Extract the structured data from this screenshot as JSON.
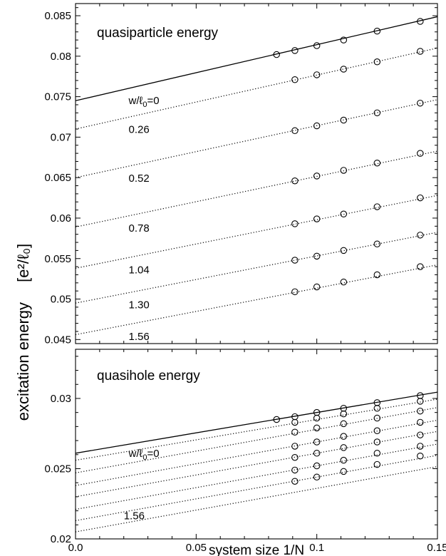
{
  "ylabel": "excitation energy",
  "ylabel_unit": "[e²/ℓ₀]",
  "chart_data": [
    {
      "type": "line",
      "title": "quasiparticle energy",
      "xlabel": "",
      "xlim": [
        0,
        0.15
      ],
      "ylim": [
        0.0445,
        0.0865
      ],
      "yticks": [
        0.045,
        0.05,
        0.055,
        0.06,
        0.065,
        0.07,
        0.075,
        0.08,
        0.085
      ],
      "ytick_labels": [
        "0.045",
        "0.05",
        "0.055",
        "0.06",
        "0.065",
        "0.07",
        "0.075",
        "0.08",
        "0.085"
      ],
      "x_points": [
        0.08333,
        0.09091,
        0.1,
        0.11111,
        0.125,
        0.14286
      ],
      "series": [
        {
          "name": "w/ℓ₀=0",
          "label_var": "w/ℓ",
          "label_sub": "0",
          "label_val": "=0",
          "style": "solid",
          "intercept": 0.0745,
          "slope": 0.0692,
          "points": [
            [
              0.08333,
              0.0802
            ],
            [
              0.09091,
              0.0807
            ],
            [
              0.1,
              0.0813
            ],
            [
              0.11111,
              0.082
            ],
            [
              0.125,
              0.0831
            ],
            [
              0.14286,
              0.0843
            ]
          ]
        },
        {
          "name": "0.26",
          "style": "dotted",
          "intercept": 0.071,
          "slope": 0.0667,
          "points": [
            [
              0.09091,
              0.0771
            ],
            [
              0.1,
              0.0777
            ],
            [
              0.11111,
              0.0784
            ],
            [
              0.125,
              0.0793
            ],
            [
              0.14286,
              0.0806
            ]
          ]
        },
        {
          "name": "0.52",
          "style": "dotted",
          "intercept": 0.065,
          "slope": 0.0642,
          "points": [
            [
              0.09091,
              0.0708
            ],
            [
              0.1,
              0.0714
            ],
            [
              0.11111,
              0.0721
            ],
            [
              0.125,
              0.073
            ],
            [
              0.14286,
              0.0742
            ]
          ]
        },
        {
          "name": "0.78",
          "style": "dotted",
          "intercept": 0.0589,
          "slope": 0.0625,
          "points": [
            [
              0.09091,
              0.0646
            ],
            [
              0.1,
              0.0652
            ],
            [
              0.11111,
              0.0659
            ],
            [
              0.125,
              0.0668
            ],
            [
              0.14286,
              0.068
            ]
          ]
        },
        {
          "name": "1.04",
          "style": "dotted",
          "intercept": 0.0538,
          "slope": 0.06,
          "points": [
            [
              0.09091,
              0.0593
            ],
            [
              0.1,
              0.0599
            ],
            [
              0.11111,
              0.0605
            ],
            [
              0.125,
              0.0614
            ],
            [
              0.14286,
              0.0625
            ]
          ]
        },
        {
          "name": "1.30",
          "style": "dotted",
          "intercept": 0.0495,
          "slope": 0.0583,
          "points": [
            [
              0.09091,
              0.0548
            ],
            [
              0.1,
              0.0553
            ],
            [
              0.11111,
              0.056
            ],
            [
              0.125,
              0.0568
            ],
            [
              0.14286,
              0.0579
            ]
          ]
        },
        {
          "name": "1.56",
          "style": "dotted",
          "intercept": 0.0456,
          "slope": 0.0575,
          "points": [
            [
              0.09091,
              0.0509
            ],
            [
              0.1,
              0.0515
            ],
            [
              0.11111,
              0.0521
            ],
            [
              0.125,
              0.053
            ],
            [
              0.14286,
              0.054
            ]
          ]
        }
      ]
    },
    {
      "type": "line",
      "title": "quasihole energy",
      "xlabel": "system size 1/N",
      "xlim": [
        0,
        0.15
      ],
      "ylim": [
        0.02,
        0.0335
      ],
      "xticks": [
        0,
        0.05,
        0.1,
        0.15
      ],
      "xtick_labels": [
        "0.0",
        "0.05",
        "0.1",
        "0.15"
      ],
      "yticks": [
        0.02,
        0.025,
        0.03
      ],
      "ytick_labels": [
        "0.02",
        "0.025",
        "0.03"
      ],
      "x_points": [
        0.08333,
        0.09091,
        0.1,
        0.11111,
        0.125,
        0.14286
      ],
      "series": [
        {
          "name": "w/ℓ₀=0",
          "label_var": "w/ℓ",
          "label_sub": "0",
          "label_val": "=0",
          "style": "solid",
          "intercept": 0.0261,
          "slope": 0.029,
          "points": [
            [
              0.08333,
              0.0285
            ],
            [
              0.09091,
              0.0287
            ],
            [
              0.1,
              0.029
            ],
            [
              0.11111,
              0.0293
            ],
            [
              0.125,
              0.0297
            ],
            [
              0.14286,
              0.0302
            ]
          ]
        },
        {
          "name": "",
          "style": "dotted",
          "intercept": 0.0256,
          "slope": 0.029,
          "points": [
            [
              0.09091,
              0.0283
            ],
            [
              0.1,
              0.0286
            ],
            [
              0.11111,
              0.0289
            ],
            [
              0.125,
              0.0293
            ],
            [
              0.14286,
              0.0298
            ]
          ]
        },
        {
          "name": "",
          "style": "dotted",
          "intercept": 0.0247,
          "slope": 0.031,
          "points": [
            [
              0.09091,
              0.0276
            ],
            [
              0.1,
              0.0279
            ],
            [
              0.11111,
              0.0282
            ],
            [
              0.125,
              0.0286
            ],
            [
              0.14286,
              0.0291
            ]
          ]
        },
        {
          "name": "",
          "style": "dotted",
          "intercept": 0.0238,
          "slope": 0.031,
          "points": [
            [
              0.09091,
              0.0266
            ],
            [
              0.1,
              0.0269
            ],
            [
              0.11111,
              0.0273
            ],
            [
              0.125,
              0.0277
            ],
            [
              0.14286,
              0.0283
            ]
          ]
        },
        {
          "name": "",
          "style": "dotted",
          "intercept": 0.023,
          "slope": 0.031,
          "points": [
            [
              0.09091,
              0.0258
            ],
            [
              0.1,
              0.0261
            ],
            [
              0.11111,
              0.0265
            ],
            [
              0.125,
              0.0269
            ],
            [
              0.14286,
              0.0274
            ]
          ]
        },
        {
          "name": "",
          "style": "dotted",
          "intercept": 0.0221,
          "slope": 0.031,
          "points": [
            [
              0.09091,
              0.0249
            ],
            [
              0.1,
              0.0252
            ],
            [
              0.11111,
              0.0256
            ],
            [
              0.125,
              0.0261
            ],
            [
              0.14286,
              0.0266
            ]
          ]
        },
        {
          "name": "",
          "style": "dotted",
          "intercept": 0.0213,
          "slope": 0.031,
          "points": [
            [
              0.09091,
              0.0241
            ],
            [
              0.1,
              0.0244
            ],
            [
              0.11111,
              0.0248
            ],
            [
              0.125,
              0.0253
            ],
            [
              0.14286,
              0.0259
            ]
          ]
        },
        {
          "name": "",
          "style": "dotted",
          "intercept": 0.0205,
          "slope": 0.031,
          "points": []
        }
      ],
      "annotations": [
        {
          "text": "1.56",
          "x": 0.02,
          "y": 0.0214
        }
      ]
    }
  ]
}
